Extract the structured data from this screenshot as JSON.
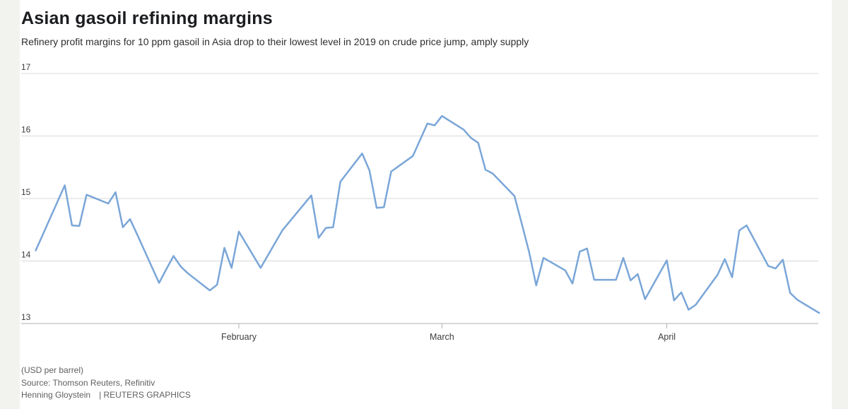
{
  "header": {
    "title": "Asian gasoil refining margins",
    "subtitle": "Refinery profit margins for 10 ppm gasoil in Asia drop to their lowest level in 2019 on crude price jump, amply supply"
  },
  "footer": {
    "unit": "(USD per barrel)",
    "source": "Source: Thomson Reuters, Refinitiv",
    "byline": "Henning Gloystein",
    "brand": "| REUTERS GRAPHICS"
  },
  "colors": {
    "line": "#7aa6d8",
    "grid": "#d9d9d9",
    "axis": "#b0b0b0",
    "tick_label": "#3d3d3d",
    "gutter": "#f2f2ef"
  },
  "chart_data": {
    "type": "line",
    "title": "Asian gasoil refining margins",
    "xlabel": "",
    "ylabel": "USD per barrel",
    "ylim": [
      13,
      17
    ],
    "y_ticks": [
      13,
      14,
      15,
      16,
      17
    ],
    "x_ticks": [
      {
        "label": "February",
        "date": "2019-02-01"
      },
      {
        "label": "March",
        "date": "2019-03-01"
      },
      {
        "label": "April",
        "date": "2019-04-01"
      }
    ],
    "x_range": [
      "2019-01-02",
      "2019-04-22"
    ],
    "grid": "horizontal",
    "legend": "none",
    "series": [
      {
        "name": "10 ppm gasoil refining margin, Asia",
        "points": [
          [
            "2019-01-04",
            14.17
          ],
          [
            "2019-01-07",
            14.95
          ],
          [
            "2019-01-08",
            15.21
          ],
          [
            "2019-01-09",
            14.57
          ],
          [
            "2019-01-10",
            14.56
          ],
          [
            "2019-01-11",
            15.06
          ],
          [
            "2019-01-14",
            14.92
          ],
          [
            "2019-01-15",
            15.1
          ],
          [
            "2019-01-16",
            14.54
          ],
          [
            "2019-01-17",
            14.67
          ],
          [
            "2019-01-18",
            14.42
          ],
          [
            "2019-01-21",
            13.65
          ],
          [
            "2019-01-22",
            13.87
          ],
          [
            "2019-01-23",
            14.08
          ],
          [
            "2019-01-24",
            13.91
          ],
          [
            "2019-01-25",
            13.8
          ],
          [
            "2019-01-28",
            13.53
          ],
          [
            "2019-01-29",
            13.62
          ],
          [
            "2019-01-30",
            14.21
          ],
          [
            "2019-01-31",
            13.89
          ],
          [
            "2019-02-01",
            14.47
          ],
          [
            "2019-02-04",
            13.89
          ],
          [
            "2019-02-05",
            14.09
          ],
          [
            "2019-02-06",
            14.29
          ],
          [
            "2019-02-07",
            14.49
          ],
          [
            "2019-02-08",
            14.63
          ],
          [
            "2019-02-11",
            15.05
          ],
          [
            "2019-02-12",
            14.37
          ],
          [
            "2019-02-13",
            14.53
          ],
          [
            "2019-02-14",
            14.54
          ],
          [
            "2019-02-15",
            15.27
          ],
          [
            "2019-02-18",
            15.72
          ],
          [
            "2019-02-19",
            15.45
          ],
          [
            "2019-02-20",
            14.85
          ],
          [
            "2019-02-21",
            14.86
          ],
          [
            "2019-02-22",
            15.43
          ],
          [
            "2019-02-25",
            15.68
          ],
          [
            "2019-02-26",
            15.94
          ],
          [
            "2019-02-27",
            16.2
          ],
          [
            "2019-02-28",
            16.17
          ],
          [
            "2019-03-01",
            16.32
          ],
          [
            "2019-03-04",
            16.1
          ],
          [
            "2019-03-05",
            15.97
          ],
          [
            "2019-03-06",
            15.89
          ],
          [
            "2019-03-07",
            15.46
          ],
          [
            "2019-03-08",
            15.4
          ],
          [
            "2019-03-11",
            15.04
          ],
          [
            "2019-03-12",
            14.6
          ],
          [
            "2019-03-13",
            14.15
          ],
          [
            "2019-03-14",
            13.61
          ],
          [
            "2019-03-15",
            14.05
          ],
          [
            "2019-03-18",
            13.85
          ],
          [
            "2019-03-19",
            13.64
          ],
          [
            "2019-03-20",
            14.15
          ],
          [
            "2019-03-21",
            14.2
          ],
          [
            "2019-03-22",
            13.7
          ],
          [
            "2019-03-25",
            13.7
          ],
          [
            "2019-03-26",
            14.05
          ],
          [
            "2019-03-27",
            13.69
          ],
          [
            "2019-03-28",
            13.79
          ],
          [
            "2019-03-29",
            13.39
          ],
          [
            "2019-04-01",
            14.01
          ],
          [
            "2019-04-02",
            13.37
          ],
          [
            "2019-04-03",
            13.5
          ],
          [
            "2019-04-04",
            13.22
          ],
          [
            "2019-04-05",
            13.3
          ],
          [
            "2019-04-08",
            13.78
          ],
          [
            "2019-04-09",
            14.03
          ],
          [
            "2019-04-10",
            13.74
          ],
          [
            "2019-04-11",
            14.49
          ],
          [
            "2019-04-12",
            14.57
          ],
          [
            "2019-04-15",
            13.92
          ],
          [
            "2019-04-16",
            13.88
          ],
          [
            "2019-04-17",
            14.02
          ],
          [
            "2019-04-18",
            13.49
          ],
          [
            "2019-04-19",
            13.38
          ],
          [
            "2019-04-22",
            13.17
          ]
        ]
      }
    ]
  }
}
